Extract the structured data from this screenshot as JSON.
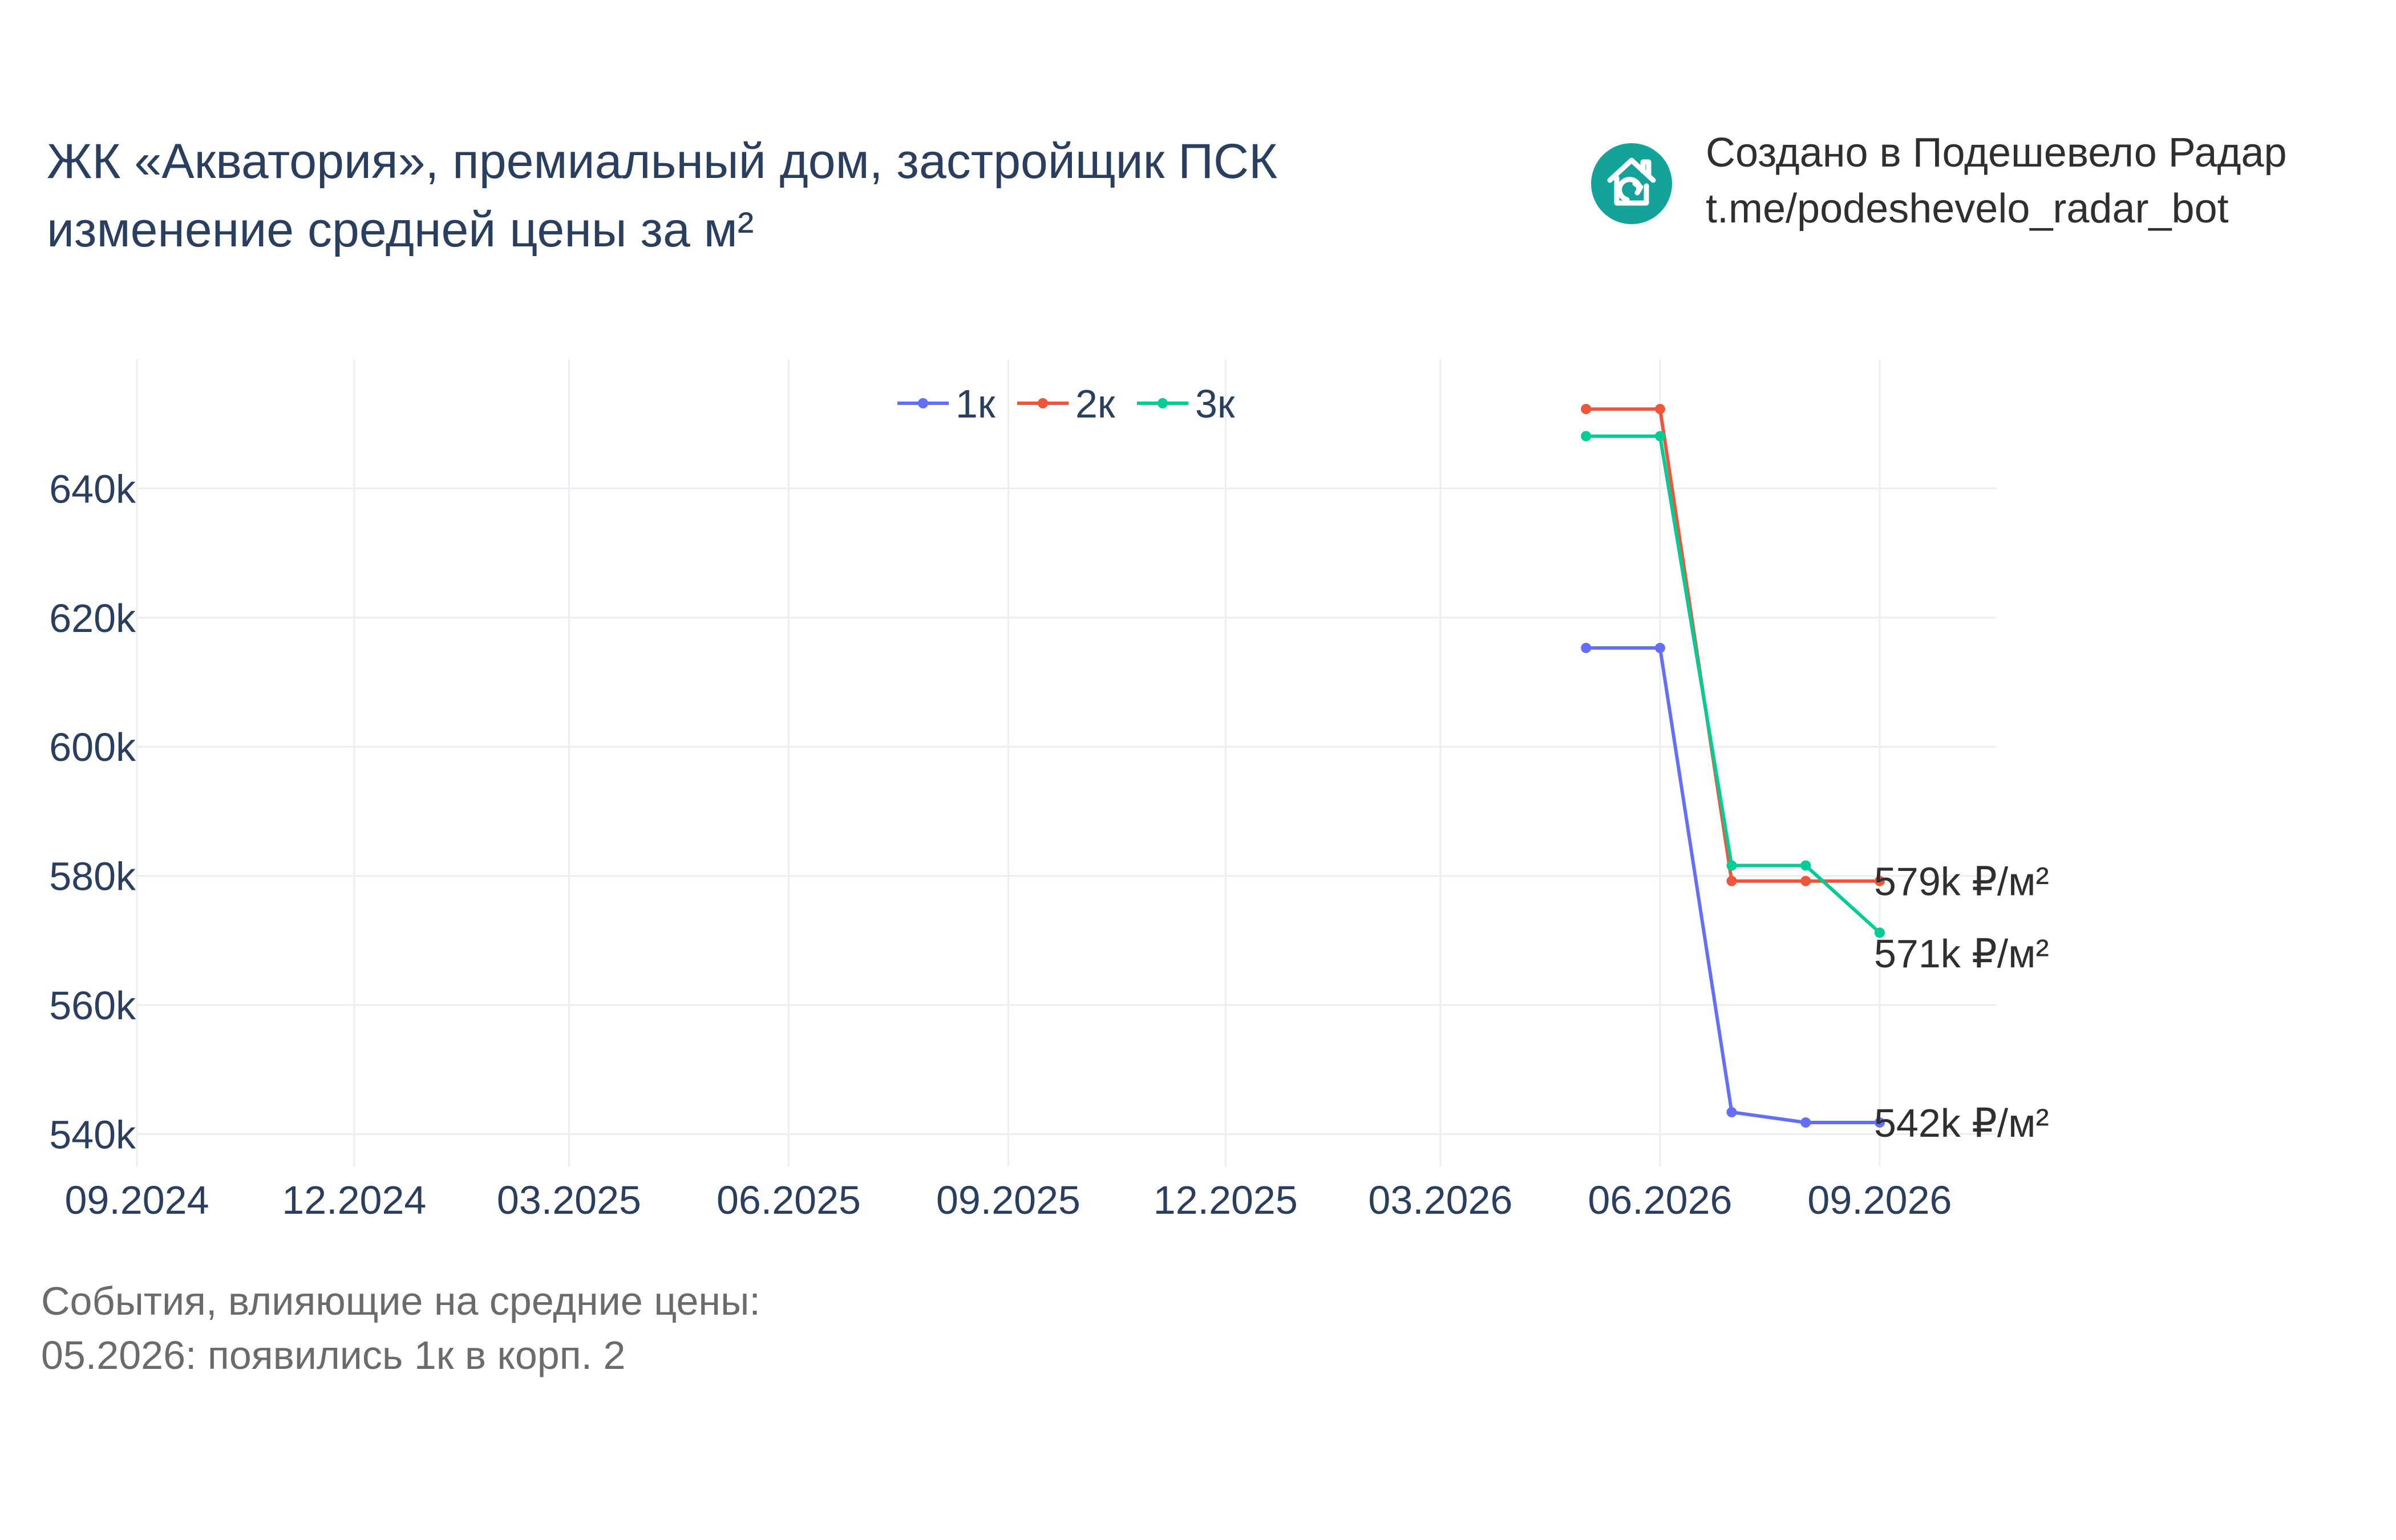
{
  "title": {
    "line1": "ЖК «Акватория», премиальный дом, застройщик ПСК",
    "line2": "изменение средней цены за м²"
  },
  "credit": {
    "line1": "Создано в Подешевело Радар",
    "line2": "t.me/podeshevelo_radar_bot",
    "icon": "house-refresh-icon",
    "icon_color": "#13a39b"
  },
  "events": {
    "header": "События, влияющие на средние цены:",
    "items": [
      "05.2026: появились 1к в корп. 2"
    ]
  },
  "chart_data": {
    "type": "line",
    "x_dates": [
      "2026-05-01",
      "2026-06-01",
      "2026-07-01",
      "2026-08-01",
      "2026-09-01"
    ],
    "xlim": [
      "2024-09-01",
      "2026-10-20"
    ],
    "ylim": [
      535000,
      660000
    ],
    "x_ticks": [
      {
        "date": "2024-09-01",
        "label": "09.2024"
      },
      {
        "date": "2024-12-01",
        "label": "12.2024"
      },
      {
        "date": "2025-03-01",
        "label": "03.2025"
      },
      {
        "date": "2025-06-01",
        "label": "06.2025"
      },
      {
        "date": "2025-09-01",
        "label": "09.2025"
      },
      {
        "date": "2025-12-01",
        "label": "12.2025"
      },
      {
        "date": "2026-03-01",
        "label": "03.2026"
      },
      {
        "date": "2026-06-01",
        "label": "06.2026"
      },
      {
        "date": "2026-09-01",
        "label": "09.2026"
      }
    ],
    "y_ticks": [
      {
        "value": 540000,
        "label": "540k"
      },
      {
        "value": 560000,
        "label": "560k"
      },
      {
        "value": 580000,
        "label": "580k"
      },
      {
        "value": 600000,
        "label": "600k"
      },
      {
        "value": 620000,
        "label": "620k"
      },
      {
        "value": 640000,
        "label": "640k"
      }
    ],
    "grid": true,
    "legend_position": "top-center",
    "series": [
      {
        "name": "1к",
        "color": "#636efa",
        "values": [
          615300,
          615300,
          543400,
          541800,
          541800
        ],
        "end_label": "542k ₽/м²"
      },
      {
        "name": "2к",
        "color": "#ef553b",
        "values": [
          652300,
          652300,
          579200,
          579200,
          579200
        ],
        "end_label": "579k ₽/м²"
      },
      {
        "name": "3к",
        "color": "#00cc96",
        "values": [
          648100,
          648100,
          581600,
          581600,
          571200
        ],
        "end_label": "571k ₽/м²"
      }
    ]
  }
}
